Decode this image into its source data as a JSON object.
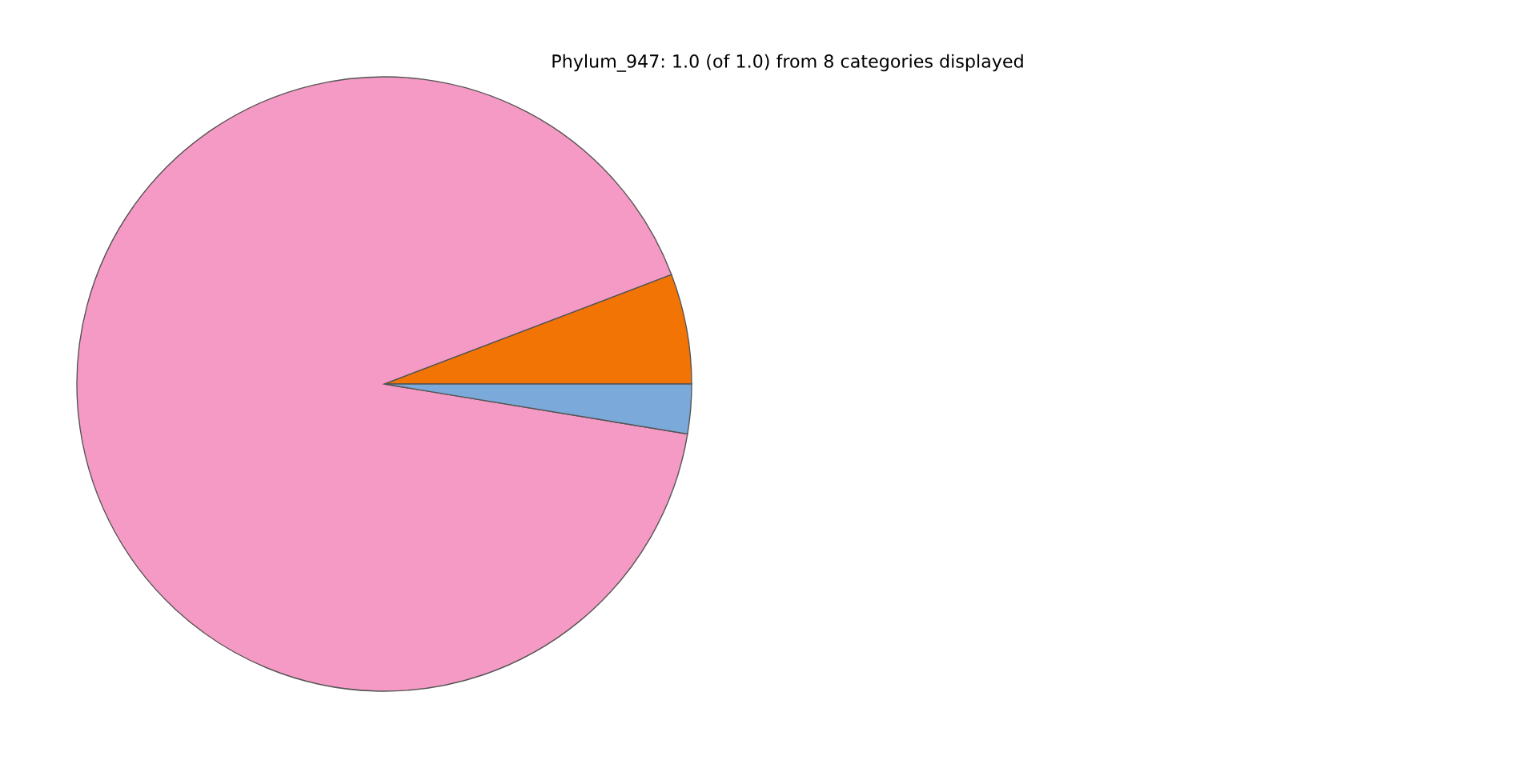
{
  "chart_data": {
    "type": "pie",
    "title": "Phylum_947: 1.0 (of 1.0) from 8 categories displayed",
    "categories": [
      null,
      null,
      null
    ],
    "values": [
      5.8,
      91.6,
      2.6
    ],
    "colors": [
      "#f27405",
      "#f49ac4",
      "#7ba9da"
    ]
  }
}
